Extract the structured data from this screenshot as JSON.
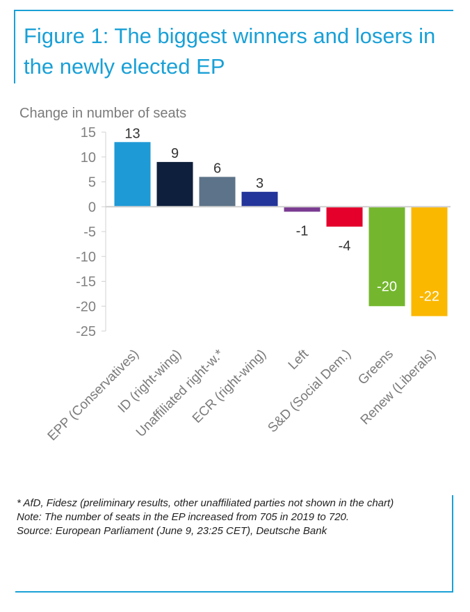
{
  "title": "Figure 1: The biggest winners and losers in the newly elected EP",
  "chart_data": {
    "type": "bar",
    "title": "Figure 1: The biggest winners and losers in the newly elected EP",
    "ylabel": "Change in number of seats",
    "xlabel": "",
    "ylim": [
      -25,
      15
    ],
    "yticks": [
      15,
      10,
      5,
      0,
      -5,
      -10,
      -15,
      -20,
      -25
    ],
    "grid": false,
    "legend": "none",
    "categories": [
      "EPP (Conservatives)",
      "ID (right-wing)",
      "Unaffiliated right-w.*",
      "ECR (right-wing)",
      "Left",
      "S&D (Social Dem.)",
      "Greens",
      "Renew (Liberals)"
    ],
    "values": [
      13,
      9,
      6,
      3,
      -1,
      -4,
      -20,
      -22
    ],
    "colors": [
      "#1e9ad6",
      "#0d1f3c",
      "#5d7389",
      "#23349a",
      "#7a3b91",
      "#e4002b",
      "#74b72e",
      "#fbb800"
    ],
    "data_labels": [
      "13",
      "9",
      "6",
      "3",
      "-1",
      "-4",
      "-20",
      "-22"
    ]
  },
  "notes": [
    "* AfD, Fidesz (preliminary results, other unaffiliated parties not shown in the chart)",
    "Note: The number of seats in the EP increased from 705 in 2019 to 720.",
    "Source: European Parliament (June 9, 23:25 CET), Deutsche Bank"
  ]
}
